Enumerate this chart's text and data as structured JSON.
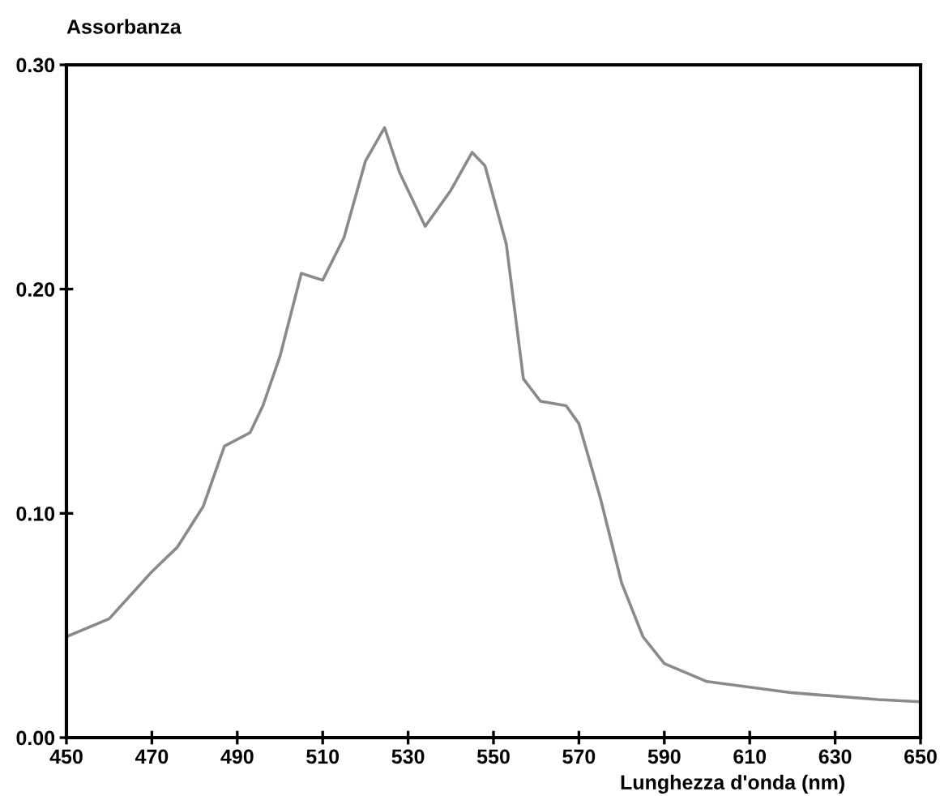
{
  "chart_data": {
    "type": "line",
    "xlabel": "Lunghezza d'onda (nm)",
    "ylabel": "Assorbanza",
    "xlim": [
      450,
      650
    ],
    "ylim": [
      0,
      0.3
    ],
    "xticks": [
      450,
      470,
      490,
      510,
      530,
      550,
      570,
      590,
      610,
      630,
      650
    ],
    "yticks": [
      {
        "value": 0,
        "label": "0.00"
      },
      {
        "value": 0.1,
        "label": "0.10"
      },
      {
        "value": 0.2,
        "label": "0.20"
      },
      {
        "value": 0.3,
        "label": "0.30"
      }
    ],
    "grid": false,
    "legend": false,
    "marker": "none",
    "line_style": "solid",
    "series": [
      {
        "color": "#8a8a8a",
        "x": [
          450,
          460,
          470,
          476,
          482,
          487,
          493,
          496,
          500,
          505,
          510,
          515,
          520,
          524.5,
          528,
          534,
          540,
          545,
          548,
          553,
          557,
          561,
          567,
          570,
          575,
          580,
          585,
          590,
          600,
          620,
          640,
          650
        ],
        "values": [
          0.045,
          0.053,
          0.074,
          0.085,
          0.103,
          0.13,
          0.136,
          0.148,
          0.17,
          0.207,
          0.204,
          0.223,
          0.257,
          0.272,
          0.252,
          0.228,
          0.244,
          0.261,
          0.255,
          0.22,
          0.16,
          0.15,
          0.148,
          0.14,
          0.107,
          0.069,
          0.045,
          0.033,
          0.025,
          0.02,
          0.017,
          0.016
        ]
      }
    ]
  }
}
